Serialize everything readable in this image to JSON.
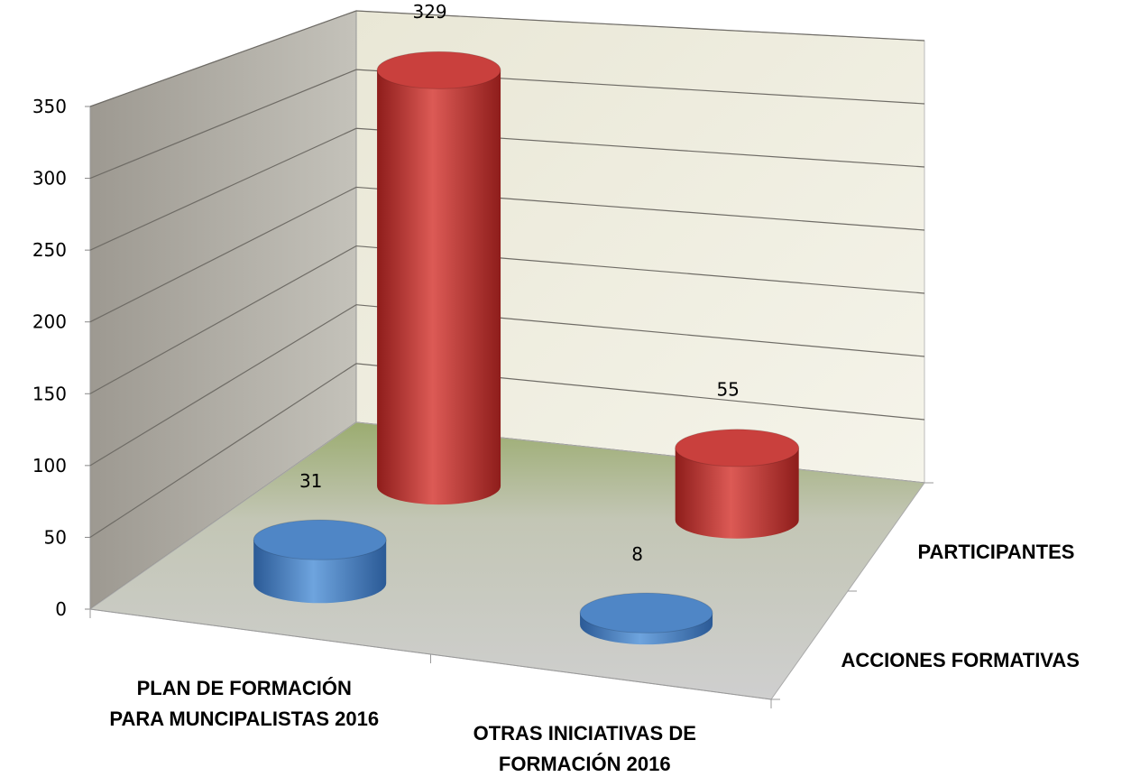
{
  "chart_data": {
    "type": "bar",
    "categories": [
      "PLAN DE FORMACIÓN\nPARA MUNCIPALISTAS 2016",
      "OTRAS INICIATIVAS DE\nFORMACIÓN 2016"
    ],
    "series": [
      {
        "name": "ACCIONES FORMATIVAS",
        "color": "#4f86c6",
        "values": [
          31,
          8
        ]
      },
      {
        "name": "PARTICIPANTES",
        "color": "#c9403d",
        "values": [
          329,
          55
        ]
      }
    ],
    "ylim": [
      0,
      350
    ],
    "yticks": [
      0,
      50,
      100,
      150,
      200,
      250,
      300,
      350
    ],
    "grid": true
  }
}
